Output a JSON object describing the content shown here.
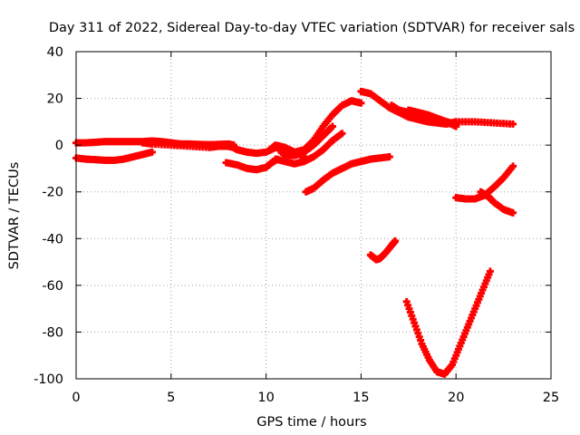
{
  "chart_data": {
    "type": "scatter",
    "title": "Day 311 of 2022, Sidereal Day-to-day VTEC variation (SDTVAR) for receiver sals",
    "xlabel": "GPS time / hours",
    "ylabel": "SDTVAR / TECUs",
    "xlim": [
      0,
      25
    ],
    "ylim": [
      -100,
      40
    ],
    "xticks": [
      0,
      5,
      10,
      15,
      20,
      25
    ],
    "yticks": [
      -100,
      -80,
      -60,
      -40,
      -20,
      0,
      20,
      40
    ],
    "grid": true,
    "legend": "none",
    "marker": "plus",
    "color": "#ff0000",
    "series": [
      {
        "x": [
          0.0,
          0.5,
          1,
          1.5,
          2,
          2.5,
          3,
          3.5,
          4,
          4.5,
          5,
          5.5,
          6,
          6.5,
          7,
          7.5,
          8,
          8.3
        ],
        "y": [
          1,
          1,
          1.2,
          1.5,
          1.5,
          1.5,
          1.5,
          1.5,
          1.8,
          1.5,
          1,
          0.5,
          0.5,
          0.3,
          0.2,
          0.3,
          0.5,
          0
        ]
      },
      {
        "x": [
          0.0,
          0.5,
          1,
          1.5,
          2,
          2.5,
          3,
          3.5,
          4
        ],
        "y": [
          -5.5,
          -6,
          -6.2,
          -6.5,
          -6.5,
          -6,
          -5,
          -4,
          -3
        ]
      },
      {
        "x": [
          3.5,
          4,
          5,
          6,
          7,
          7.5,
          8,
          8.3
        ],
        "y": [
          1,
          0.5,
          0,
          -0.5,
          -1,
          -0.5,
          -0.5,
          -1
        ]
      },
      {
        "x": [
          8.3,
          8.5,
          9,
          9.5,
          10,
          10.5,
          11,
          11.5,
          12
        ],
        "y": [
          -1,
          -2,
          -3,
          -3.5,
          -3,
          -1,
          -2,
          -3,
          -5
        ]
      },
      {
        "x": [
          7.9,
          8.5,
          9,
          9.5,
          10,
          10.3,
          10.6
        ],
        "y": [
          -7.5,
          -8.5,
          -10,
          -10.5,
          -9.5,
          -7.5,
          -6
        ]
      },
      {
        "x": [
          10.2,
          10.5,
          11,
          11.5,
          12,
          12.5,
          13,
          13.5,
          14,
          14.5,
          15
        ],
        "y": [
          -2,
          0,
          -1,
          -3,
          -2,
          2,
          8,
          13,
          17,
          19,
          18
        ]
      },
      {
        "x": [
          10.5,
          11,
          11.5,
          12,
          12.5,
          13,
          13.5,
          14
        ],
        "y": [
          -6,
          -7,
          -8,
          -7,
          -5,
          -2,
          2,
          5
        ]
      },
      {
        "x": [
          10.8,
          11,
          11.5,
          12,
          12.5,
          13,
          13.5
        ],
        "y": [
          -3,
          -4,
          -4.5,
          -3,
          0,
          4,
          8
        ]
      },
      {
        "x": [
          12.1,
          12.5,
          13,
          13.5,
          14,
          14.5,
          15,
          15.5,
          16,
          16.5
        ],
        "y": [
          -20,
          -18.5,
          -15,
          -12,
          -10,
          -8,
          -7,
          -6,
          -5.5,
          -5
        ]
      },
      {
        "x": [
          15,
          15.5,
          16,
          16.5,
          17,
          17.5,
          18,
          18.5,
          19,
          19.5,
          20,
          21,
          22,
          23
        ],
        "y": [
          23,
          22,
          19,
          16,
          14,
          12,
          11,
          10,
          9.5,
          9,
          10,
          10,
          9.5,
          9
        ]
      },
      {
        "x": [
          16.6,
          17,
          17.5,
          18,
          18.5,
          19,
          19.5,
          20
        ],
        "y": [
          17,
          15,
          14,
          13,
          12,
          11,
          10,
          9
        ]
      },
      {
        "x": [
          17.5,
          18,
          18.5,
          19,
          19.5,
          20
        ],
        "y": [
          15,
          14,
          13,
          11.5,
          10,
          8
        ]
      },
      {
        "x": [
          15.5,
          15.8,
          16,
          16.3,
          16.6,
          16.8
        ],
        "y": [
          -47,
          -49,
          -48.5,
          -46,
          -43,
          -41
        ]
      },
      {
        "x": [
          17.4,
          17.8,
          18.2,
          18.6,
          19,
          19.4,
          19.8,
          20.2,
          20.6,
          21,
          21.4,
          21.8
        ],
        "y": [
          -67,
          -76,
          -85,
          -92,
          -97,
          -98,
          -94,
          -86,
          -78,
          -70,
          -62,
          -54
        ]
      },
      {
        "x": [
          20,
          20.5,
          21,
          21.5,
          22,
          22.5,
          23
        ],
        "y": [
          -22.5,
          -23,
          -23,
          -21.5,
          -18,
          -14,
          -9
        ]
      },
      {
        "x": [
          21.3,
          21.7,
          22,
          22.5,
          23
        ],
        "y": [
          -20,
          -22,
          -24.5,
          -27.5,
          -29
        ]
      }
    ]
  }
}
